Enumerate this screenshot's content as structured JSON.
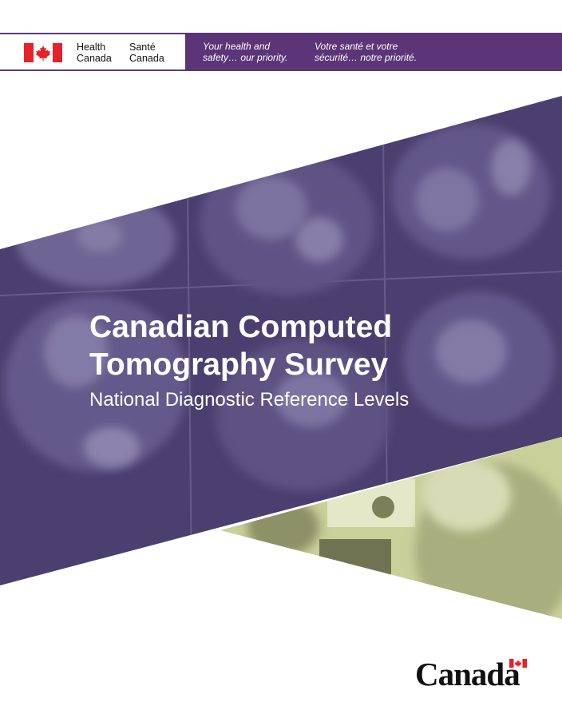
{
  "header": {
    "department_en_line1": "Health",
    "department_en_line2": "Canada",
    "department_fr_line1": "Santé",
    "department_fr_line2": "Canada",
    "slogan_en_line1": "Your health and",
    "slogan_en_line2": "safety… our priority.",
    "slogan_fr_line1": "Votre santé et votre",
    "slogan_fr_line2": "sécurité… notre priorité.",
    "flag_icon": "canada-flag-icon",
    "accent_color": "#5b3578"
  },
  "cover": {
    "title_line1": "Canadian Computed",
    "title_line2": "Tomography Survey",
    "subtitle": "National Diagnostic Reference Levels",
    "band_color": "#4a3f6e",
    "photo_tint": "#c9d09a"
  },
  "footer": {
    "wordmark": "Canada",
    "wordmark_flag_icon": "canada-flag-icon"
  }
}
